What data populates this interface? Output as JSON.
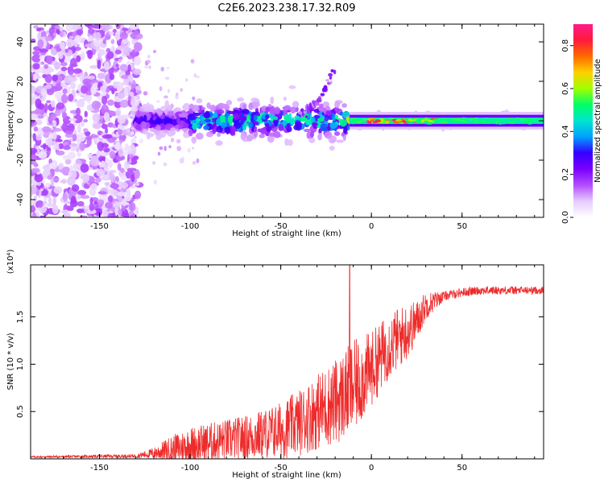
{
  "figure_title": "C2E6.2023.238.17.32.R09",
  "chart_data": [
    {
      "type": "heatmap",
      "title": "",
      "xlabel": "Height of straight line (km)",
      "ylabel": "Frequency (Hz)",
      "xlim": [
        -188,
        95
      ],
      "ylim": [
        -49,
        49
      ],
      "xticks": [
        -150,
        -100,
        -50,
        0,
        50
      ],
      "xtick_labels": [
        "-150",
        "-100",
        "-50",
        "0",
        "50"
      ],
      "yticks": [
        -40,
        -20,
        0,
        20,
        40
      ],
      "ytick_labels": [
        "-40",
        "-20",
        "0",
        "20",
        "40"
      ],
      "colorbar": {
        "label": "Normalized spectral amplitude",
        "range": [
          0,
          0.9
        ],
        "ticks": [
          0,
          0.2,
          0.4,
          0.6,
          0.8
        ],
        "tick_labels": [
          "0.0",
          "0.2",
          "0.4",
          "0.6",
          "0.8"
        ],
        "colormap": [
          "#ffffff",
          "#e6ccff",
          "#b44dff",
          "#7a00ff",
          "#3300ff",
          "#00a0ff",
          "#00e5d0",
          "#00ff66",
          "#a0ff00",
          "#ffd000",
          "#ff6a00",
          "#ff1a3a",
          "#ff1a8c"
        ]
      },
      "regions": [
        {
          "x_range": [
            -188,
            -130
          ],
          "freq_spread": 49,
          "max_amplitude": 0.15,
          "description_pattern": "dispersed speckle"
        },
        {
          "x_range": [
            -130,
            -100
          ],
          "freq_spread": 6,
          "max_amplitude": 0.3
        },
        {
          "x_range": [
            -100,
            -12
          ],
          "freq_spread": 10,
          "max_amplitude": 0.5
        },
        {
          "x_range": [
            -12,
            95
          ],
          "freq_spread": 3,
          "max_amplitude": 0.9
        }
      ],
      "grid": false
    },
    {
      "type": "line",
      "title": "",
      "xlabel": "Height of straight line (km)",
      "ylabel": "SNR (10 * v/v)",
      "ylabel_multiplier": "(x10⁴)",
      "xlim": [
        -188,
        95
      ],
      "ylim": [
        0,
        2.05
      ],
      "xticks": [
        -150,
        -100,
        -50,
        0,
        50
      ],
      "xtick_labels": [
        "-150",
        "-100",
        "-50",
        "0",
        "50"
      ],
      "yticks": [
        0.5,
        1.0,
        1.5
      ],
      "ytick_labels": [
        "0.5",
        "1.0",
        "1.5"
      ],
      "series": [
        {
          "color": "#ee2b2b",
          "trend": {
            "x": [
              -188,
              -130,
              -120,
              -110,
              -100,
              -90,
              -80,
              -70,
              -60,
              -50,
              -40,
              -30,
              -20,
              -10,
              0,
              10,
              20,
              25,
              30,
              40,
              50,
              60,
              70,
              80,
              95
            ],
            "y": [
              0.02,
              0.03,
              0.06,
              0.1,
              0.14,
              0.17,
              0.2,
              0.22,
              0.26,
              0.3,
              0.38,
              0.5,
              0.6,
              0.75,
              0.95,
              1.2,
              1.35,
              1.45,
              1.62,
              1.72,
              1.76,
              1.78,
              1.78,
              1.78,
              1.78
            ]
          },
          "noise_amplitude": {
            "x": [
              -188,
              -130,
              -120,
              -110,
              -100,
              -80,
              -60,
              -40,
              -20,
              -10,
              0,
              20,
              30,
              40,
              95
            ],
            "y": [
              0.01,
              0.02,
              0.06,
              0.15,
              0.2,
              0.22,
              0.26,
              0.35,
              0.45,
              0.5,
              0.4,
              0.3,
              0.15,
              0.05,
              0.04
            ]
          },
          "peak": {
            "x": -12,
            "y": 2.05
          }
        }
      ],
      "grid": false
    }
  ]
}
